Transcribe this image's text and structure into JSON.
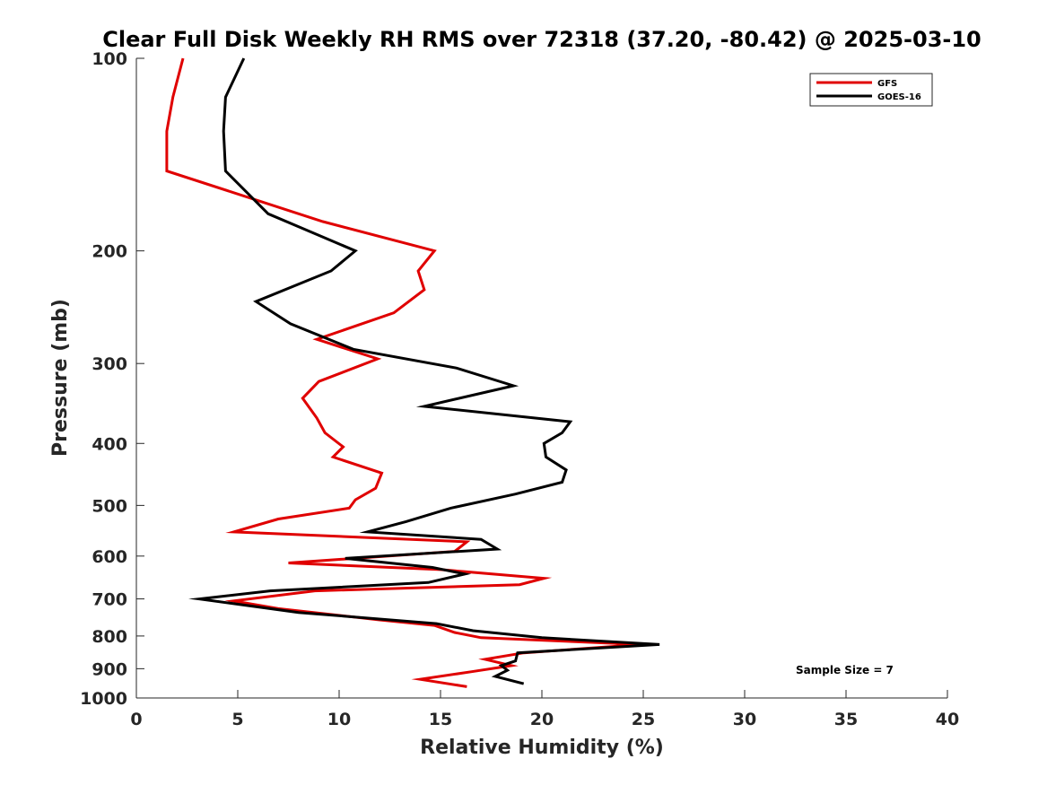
{
  "chart_data": {
    "type": "line",
    "title": "Clear Full Disk Weekly RH RMS over 72318 (37.20, -80.42) @ 2025-03-10",
    "xlabel": "Relative Humidity (%)",
    "ylabel": "Pressure (mb)",
    "xlim": [
      0,
      40
    ],
    "ylim": [
      100,
      1000
    ],
    "y_scale": "log",
    "y_reversed": true,
    "x_ticks": [
      "0",
      "5",
      "10",
      "15",
      "20",
      "25",
      "30",
      "35",
      "40"
    ],
    "y_ticks": [
      "100",
      "200",
      "300",
      "400",
      "500",
      "600",
      "700",
      "800",
      "900",
      "1000"
    ],
    "grid": false,
    "legend_position": "top-right",
    "annotation": "Sample Size = 7",
    "series": [
      {
        "name": "GFS",
        "color": "#e00000",
        "points": [
          [
            2.3,
            100
          ],
          [
            1.8,
            115
          ],
          [
            1.5,
            130
          ],
          [
            1.5,
            150
          ],
          [
            9.2,
            180
          ],
          [
            14.7,
            200
          ],
          [
            13.9,
            215
          ],
          [
            14.2,
            230
          ],
          [
            12.7,
            250
          ],
          [
            8.9,
            275
          ],
          [
            11.9,
            295
          ],
          [
            9.0,
            320
          ],
          [
            8.2,
            340
          ],
          [
            8.9,
            365
          ],
          [
            9.3,
            385
          ],
          [
            10.2,
            405
          ],
          [
            9.7,
            420
          ],
          [
            12.1,
            445
          ],
          [
            11.8,
            470
          ],
          [
            10.8,
            490
          ],
          [
            10.5,
            505
          ],
          [
            7.0,
            525
          ],
          [
            4.8,
            550
          ],
          [
            16.3,
            570
          ],
          [
            15.7,
            590
          ],
          [
            7.5,
            615
          ],
          [
            15.0,
            630
          ],
          [
            20.1,
            650
          ],
          [
            18.9,
            665
          ],
          [
            8.8,
            680
          ],
          [
            4.8,
            705
          ],
          [
            7.0,
            725
          ],
          [
            12.0,
            755
          ],
          [
            14.7,
            770
          ],
          [
            15.7,
            790
          ],
          [
            17.0,
            805
          ],
          [
            24.9,
            825
          ],
          [
            19.1,
            850
          ],
          [
            17.2,
            870
          ],
          [
            18.5,
            890
          ],
          [
            16.5,
            910
          ],
          [
            14.0,
            935
          ],
          [
            16.3,
            960
          ]
        ]
      },
      {
        "name": "GOES-16",
        "color": "#000000",
        "points": [
          [
            5.3,
            100
          ],
          [
            4.4,
            115
          ],
          [
            4.3,
            130
          ],
          [
            4.4,
            150
          ],
          [
            6.5,
            175
          ],
          [
            10.8,
            200
          ],
          [
            9.6,
            215
          ],
          [
            5.9,
            240
          ],
          [
            7.6,
            260
          ],
          [
            10.7,
            285
          ],
          [
            15.8,
            305
          ],
          [
            18.6,
            325
          ],
          [
            14.2,
            350
          ],
          [
            21.4,
            370
          ],
          [
            21.0,
            385
          ],
          [
            20.1,
            400
          ],
          [
            20.2,
            420
          ],
          [
            21.2,
            440
          ],
          [
            21.0,
            460
          ],
          [
            18.7,
            480
          ],
          [
            15.5,
            505
          ],
          [
            13.3,
            530
          ],
          [
            11.4,
            550
          ],
          [
            17.0,
            565
          ],
          [
            17.8,
            585
          ],
          [
            10.3,
            605
          ],
          [
            14.6,
            625
          ],
          [
            16.2,
            640
          ],
          [
            14.4,
            660
          ],
          [
            6.6,
            680
          ],
          [
            3.1,
            700
          ],
          [
            8.0,
            735
          ],
          [
            14.8,
            765
          ],
          [
            16.6,
            785
          ],
          [
            20.0,
            805
          ],
          [
            25.8,
            825
          ],
          [
            18.8,
            850
          ],
          [
            18.7,
            875
          ],
          [
            18.0,
            890
          ],
          [
            18.3,
            905
          ],
          [
            17.7,
            925
          ],
          [
            19.1,
            950
          ]
        ]
      }
    ]
  }
}
